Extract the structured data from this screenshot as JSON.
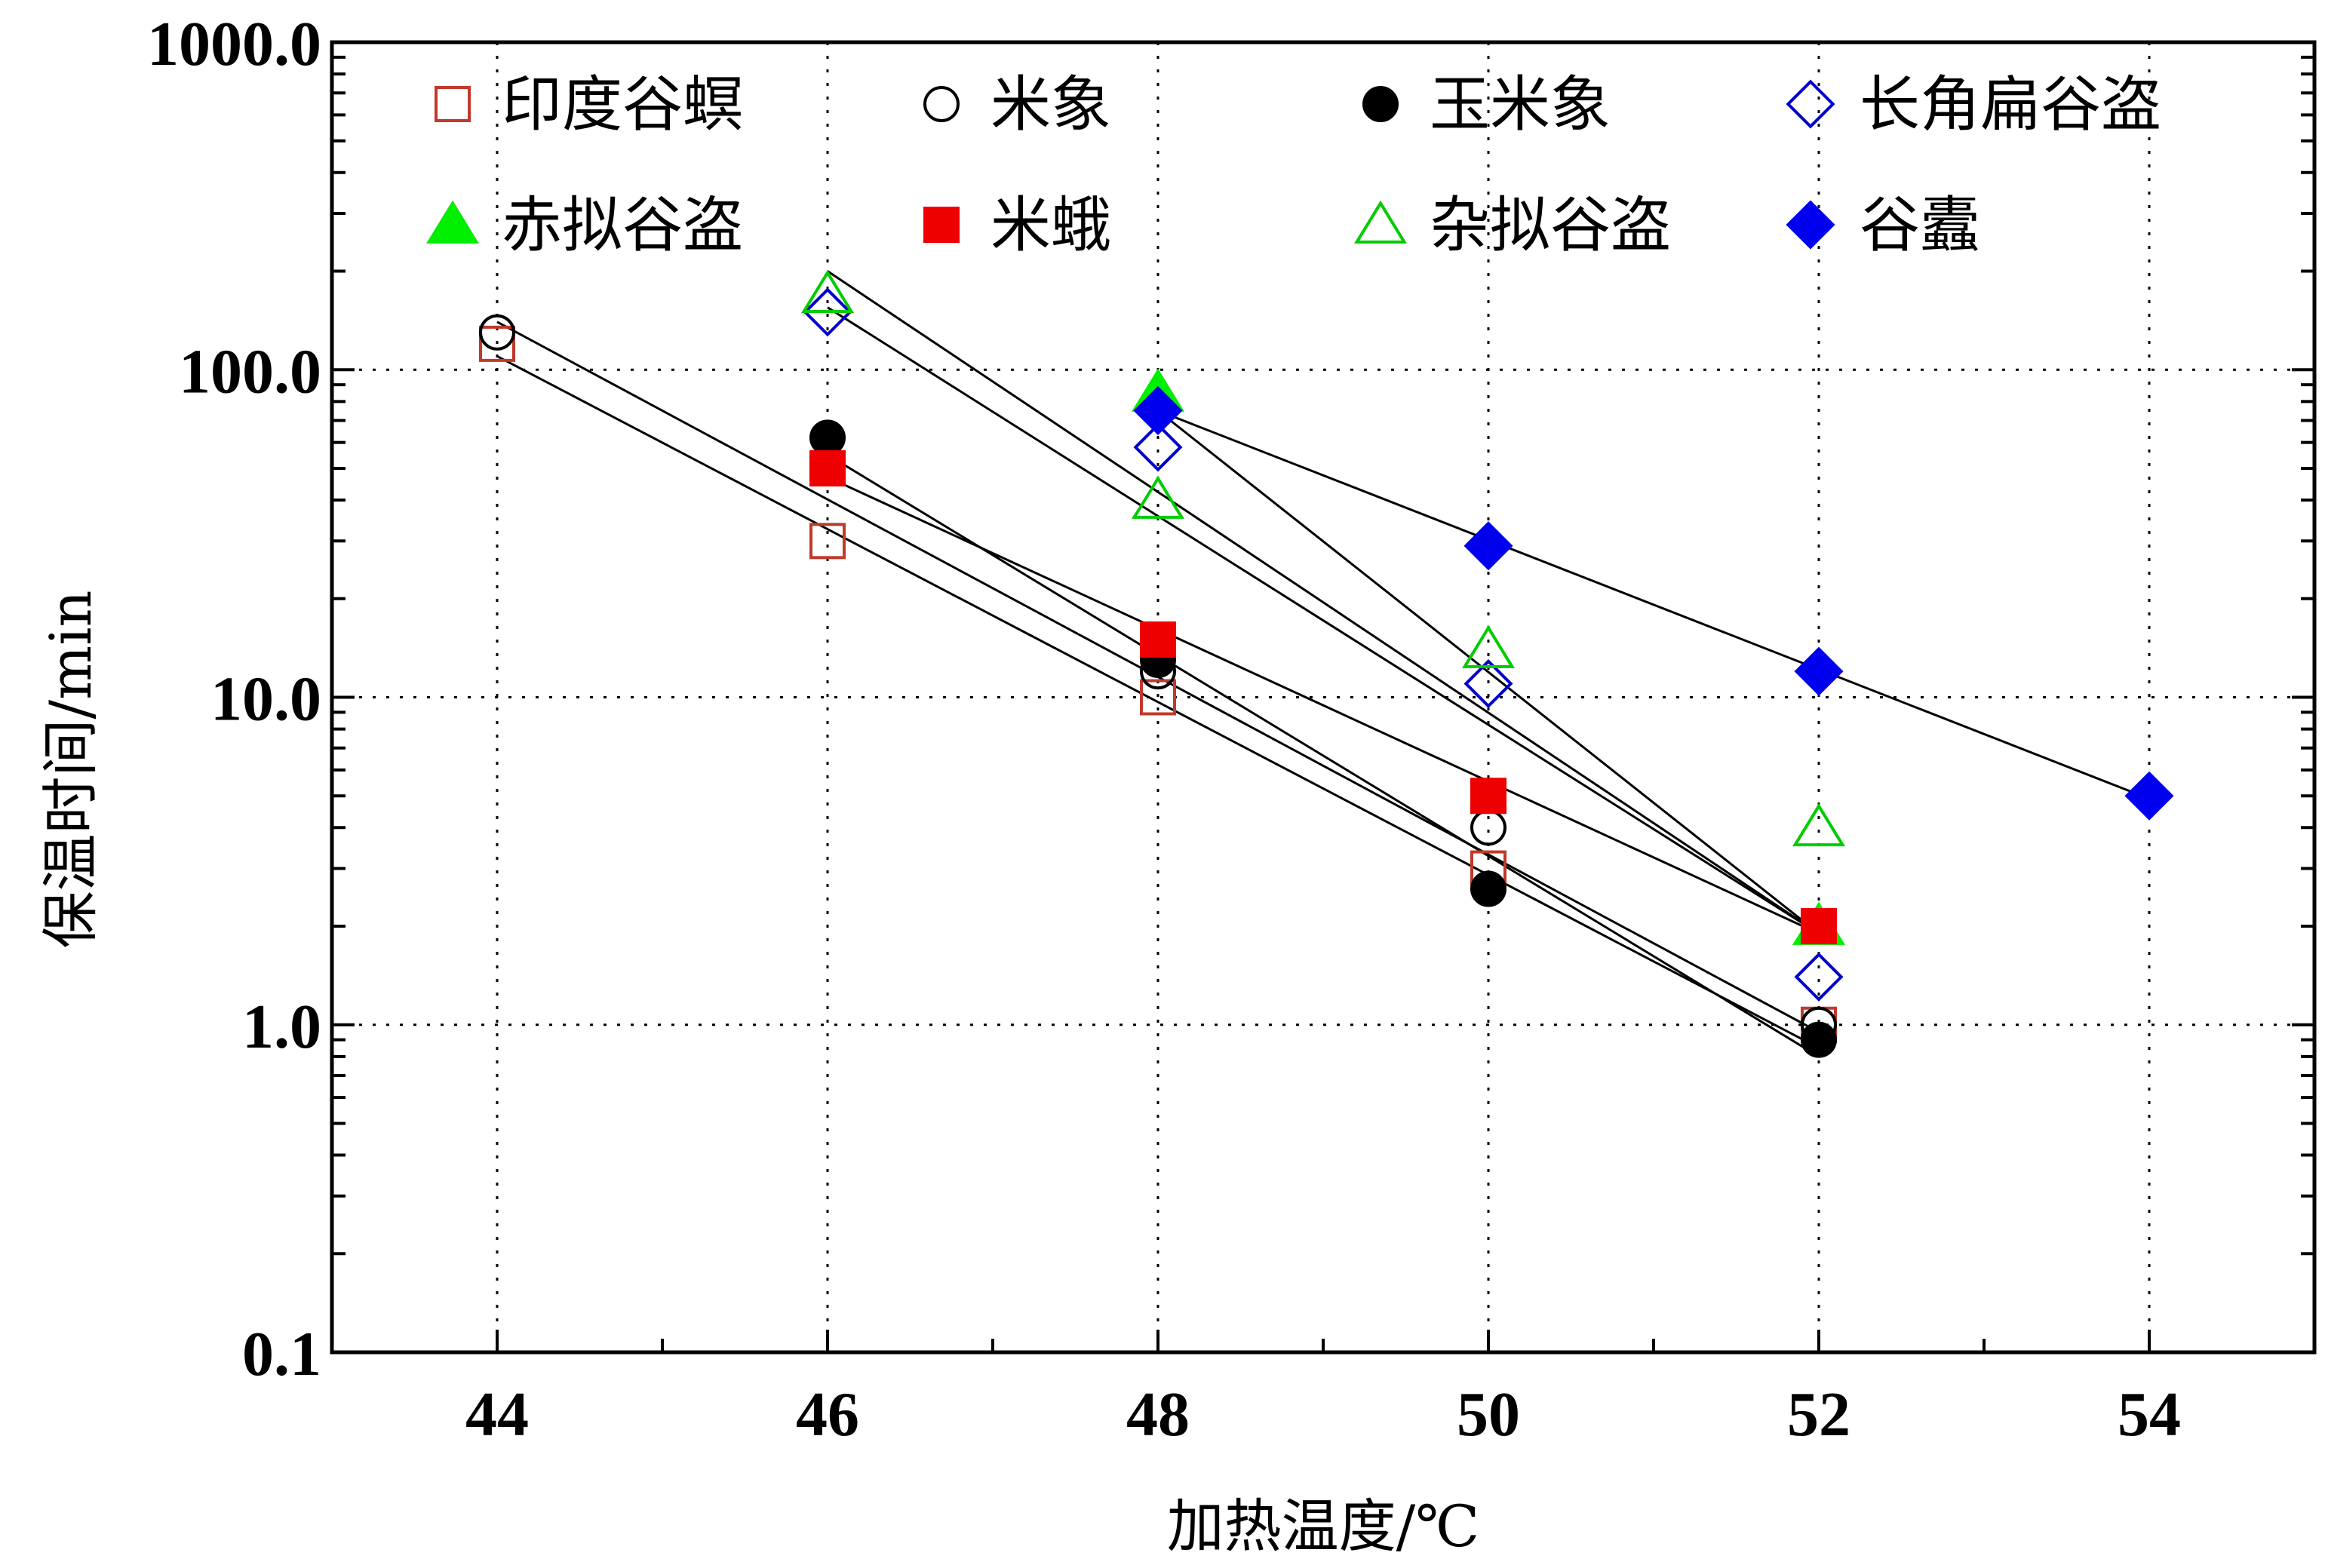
{
  "chart_data": {
    "type": "scatter",
    "xlabel": "加热温度/℃",
    "ylabel": "保温时间/min",
    "xlim": [
      43,
      55
    ],
    "ylim": [
      0.1,
      1000
    ],
    "yscale": "log",
    "grid": true,
    "legend_position": "top",
    "x_ticks": [
      44,
      46,
      48,
      50,
      52,
      54
    ],
    "x_tick_labels": [
      "44",
      "46",
      "48",
      "50",
      "52",
      "54"
    ],
    "y_ticks": [
      0.1,
      1,
      10,
      100,
      1000
    ],
    "y_tick_labels": [
      "0.1",
      "1.0",
      "10.0",
      "100.0",
      "1000.0"
    ],
    "series": [
      {
        "name": "印度谷螟",
        "marker": "square",
        "filled": false,
        "color": "#c0392b",
        "x": [
          44,
          46,
          48,
          50,
          52
        ],
        "y": [
          120,
          30,
          10,
          3,
          1
        ],
        "fit": {
          "x": [
            44,
            52
          ],
          "y": [
            110,
            0.85
          ]
        }
      },
      {
        "name": "米象",
        "marker": "circle",
        "filled": false,
        "color": "#000000",
        "x": [
          44,
          46,
          48,
          50,
          52
        ],
        "y": [
          130,
          52,
          12,
          4,
          1
        ],
        "fit": {
          "x": [
            44,
            52
          ],
          "y": [
            140,
            0.95
          ]
        }
      },
      {
        "name": "玉米象",
        "marker": "circle",
        "filled": true,
        "color": "#000000",
        "x": [
          46,
          48,
          50,
          52
        ],
        "y": [
          62,
          13,
          2.6,
          0.9
        ],
        "fit": {
          "x": [
            46,
            52
          ],
          "y": [
            55,
            0.8
          ]
        }
      },
      {
        "name": "长角扁谷盗",
        "marker": "diamond",
        "filled": false,
        "color": "#0000cc",
        "x": [
          46,
          48,
          50,
          52
        ],
        "y": [
          150,
          58,
          11,
          1.4
        ],
        "fit": {
          "x": [
            46,
            52
          ],
          "y": [
            155,
            1.9
          ]
        }
      },
      {
        "name": "赤拟谷盗",
        "marker": "triangle",
        "filled": true,
        "color": "#00ee00",
        "x": [
          48,
          52
        ],
        "y": [
          85,
          2
        ],
        "fit": {
          "x": [
            48,
            52
          ],
          "y": [
            75,
            1.9
          ]
        }
      },
      {
        "name": "米蛾",
        "marker": "square",
        "filled": true,
        "color": "#ee0000",
        "x": [
          46,
          48,
          50,
          52
        ],
        "y": [
          50,
          15,
          5,
          2
        ],
        "fit": {
          "x": [
            46,
            52
          ],
          "y": [
            47,
            1.9
          ]
        }
      },
      {
        "name": "杂拟谷盗",
        "marker": "triangle",
        "filled": false,
        "color": "#00cc00",
        "x": [
          46,
          48,
          50,
          52
        ],
        "y": [
          170,
          40,
          14,
          4
        ],
        "fit": {
          "x": [
            46,
            52
          ],
          "y": [
            200,
            1.9
          ]
        }
      },
      {
        "name": "谷蠹",
        "marker": "diamond",
        "filled": true,
        "color": "#0000ee",
        "x": [
          48,
          50,
          52,
          54
        ],
        "y": [
          75,
          29,
          12,
          5
        ],
        "fit": {
          "x": [
            48,
            54
          ],
          "y": [
            75,
            4.9
          ]
        }
      }
    ]
  }
}
